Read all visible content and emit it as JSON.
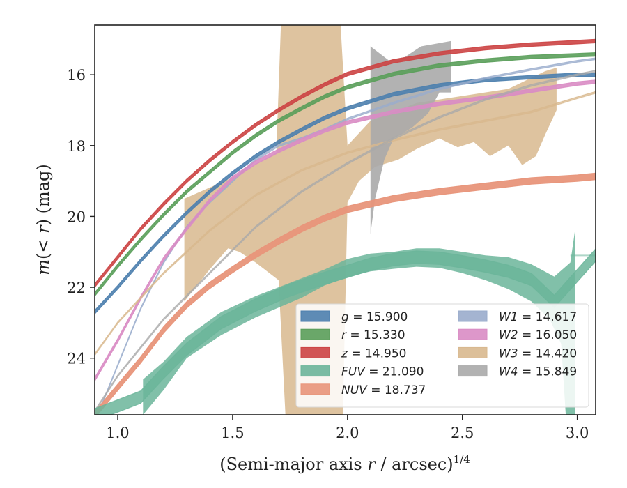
{
  "chart_data": {
    "type": "area",
    "xlabel_main": "(Semi-major axis ",
    "xlabel_var": "r",
    "xlabel_unit": " / arcsec)",
    "xlabel_sup": "1/4",
    "ylabel_m": "m",
    "ylabel_paren": "(< ",
    "ylabel_r": "r",
    "ylabel_close": ") (mag)",
    "xlim": [
      0.9,
      3.08
    ],
    "ylim": [
      25.6,
      14.6
    ],
    "xticks": [
      "1.0",
      "1.5",
      "2.0",
      "2.5",
      "3.0"
    ],
    "xtick_values": [
      1.0,
      1.5,
      2.0,
      2.5,
      3.0
    ],
    "yticks": [
      "16",
      "18",
      "20",
      "22",
      "24"
    ],
    "ytick_values": [
      16,
      18,
      20,
      22,
      24
    ],
    "legend_position": "lower-right",
    "series": [
      {
        "name": "g",
        "label": "g = 15.900",
        "color": "#4c7fae",
        "opacity": 0.9,
        "width": 0.1,
        "x": [
          0.9,
          1.0,
          1.1,
          1.2,
          1.3,
          1.4,
          1.5,
          1.6,
          1.7,
          1.8,
          1.9,
          2.0,
          2.2,
          2.4,
          2.6,
          2.8,
          3.0,
          3.08
        ],
        "y": [
          22.7,
          22.0,
          21.25,
          20.55,
          19.9,
          19.3,
          18.78,
          18.3,
          17.9,
          17.55,
          17.22,
          16.95,
          16.55,
          16.3,
          16.15,
          16.07,
          16.0,
          16.0
        ]
      },
      {
        "name": "r",
        "label": "r = 15.330",
        "color": "#5a9e5a",
        "opacity": 0.9,
        "width": 0.1,
        "x": [
          0.9,
          1.0,
          1.1,
          1.2,
          1.3,
          1.4,
          1.5,
          1.6,
          1.7,
          1.8,
          1.9,
          2.0,
          2.2,
          2.4,
          2.6,
          2.8,
          3.0,
          3.08
        ],
        "y": [
          22.2,
          21.4,
          20.65,
          19.95,
          19.3,
          18.75,
          18.2,
          17.72,
          17.3,
          16.95,
          16.62,
          16.35,
          15.98,
          15.74,
          15.6,
          15.5,
          15.45,
          15.43
        ]
      },
      {
        "name": "z",
        "label": "z = 14.950",
        "color": "#cc4444",
        "opacity": 0.9,
        "width": 0.1,
        "x": [
          0.9,
          1.0,
          1.1,
          1.2,
          1.3,
          1.4,
          1.5,
          1.6,
          1.7,
          1.8,
          1.9,
          2.0,
          2.2,
          2.4,
          2.6,
          2.8,
          3.0,
          3.08
        ],
        "y": [
          21.95,
          21.15,
          20.35,
          19.65,
          19.0,
          18.42,
          17.9,
          17.42,
          17.0,
          16.62,
          16.28,
          15.98,
          15.62,
          15.4,
          15.25,
          15.15,
          15.08,
          15.05
        ]
      },
      {
        "name": "W1",
        "label": "W1 = 14.617",
        "color": "#9aaccc",
        "opacity": 0.75,
        "width": 0.05,
        "x": [
          0.9,
          1.0,
          1.1,
          1.2,
          1.3,
          1.4,
          1.5,
          1.6,
          1.7,
          1.8,
          1.9,
          2.0,
          2.2,
          2.4,
          2.6,
          2.8,
          3.0,
          3.08
        ],
        "y": [
          25.8,
          24.2,
          22.6,
          21.3,
          20.3,
          19.6,
          19.0,
          18.4,
          18.0,
          17.8,
          17.55,
          17.25,
          16.8,
          16.4,
          16.1,
          15.85,
          15.62,
          15.55
        ]
      },
      {
        "name": "W2",
        "label": "W2 = 16.050",
        "color": "#d98cc4",
        "opacity": 0.9,
        "width": 0.1,
        "x": [
          0.9,
          1.0,
          1.1,
          1.2,
          1.3,
          1.4,
          1.5,
          1.6,
          1.7,
          1.8,
          1.9,
          2.0,
          2.2,
          2.4,
          2.6,
          2.8,
          3.0,
          3.08
        ],
        "y": [
          24.6,
          23.5,
          22.3,
          21.2,
          20.35,
          19.55,
          18.92,
          18.48,
          18.15,
          17.85,
          17.58,
          17.35,
          17.05,
          16.82,
          16.65,
          16.45,
          16.25,
          16.2
        ]
      },
      {
        "name": "W3",
        "label": "W3 = 14.420",
        "color": "#d8b88e",
        "opacity": 0.75,
        "width": 0.05,
        "x": [
          0.9,
          1.0,
          1.2,
          1.4,
          1.6,
          1.8,
          2.0,
          2.2,
          2.4,
          2.6,
          2.8,
          3.0,
          3.08
        ],
        "y": [
          23.9,
          23.0,
          21.6,
          20.4,
          19.4,
          18.7,
          18.2,
          17.85,
          17.55,
          17.3,
          17.05,
          16.65,
          16.5
        ]
      },
      {
        "name": "W4",
        "label": "W4 = 15.849",
        "color": "#aaaaaa",
        "opacity": 0.7,
        "width": 0.05,
        "x": [
          0.9,
          1.0,
          1.2,
          1.4,
          1.6,
          1.8,
          2.0,
          2.2,
          2.4,
          2.6,
          2.8,
          3.0,
          3.08
        ],
        "y": [
          25.5,
          24.5,
          22.9,
          21.6,
          20.3,
          19.3,
          18.5,
          17.8,
          17.2,
          16.7,
          16.3,
          16.0,
          15.9
        ]
      },
      {
        "name": "NUV",
        "label": "NUV = 18.737",
        "color": "#e8957a",
        "opacity": 0.95,
        "width": 0.18,
        "x": [
          0.9,
          1.1,
          1.2,
          1.3,
          1.4,
          1.5,
          1.6,
          1.7,
          1.8,
          1.9,
          2.0,
          2.2,
          2.4,
          2.6,
          2.8,
          3.0,
          3.08
        ],
        "y": [
          25.6,
          24.05,
          23.2,
          22.5,
          21.95,
          21.5,
          21.08,
          20.7,
          20.35,
          20.05,
          19.8,
          19.5,
          19.3,
          19.15,
          19.0,
          18.92,
          18.87
        ]
      },
      {
        "name": "FUV",
        "label": "FUV = 21.090",
        "color": "#6bb59a",
        "opacity": 0.85,
        "width": 0.35,
        "x": [
          0.9,
          1.1,
          1.2,
          1.3,
          1.45,
          1.6,
          1.75,
          1.9,
          2.0,
          2.1,
          2.2,
          2.3,
          2.4,
          2.5,
          2.6,
          2.7,
          2.8,
          2.9,
          3.08
        ],
        "y": [
          25.6,
          25.1,
          24.4,
          23.75,
          23.0,
          22.5,
          22.08,
          21.75,
          21.55,
          21.35,
          21.22,
          21.15,
          21.18,
          21.28,
          21.4,
          21.55,
          21.78,
          22.4,
          21.09
        ]
      }
    ],
    "bands": [
      {
        "name": "W3-band",
        "color": "#d8b88e",
        "opacity": 0.85,
        "upper": [
          [
            1.29,
            19.5
          ],
          [
            1.5,
            18.9
          ],
          [
            1.69,
            18.2
          ],
          [
            1.71,
            14.6
          ],
          [
            1.97,
            14.6
          ],
          [
            2.0,
            18.0
          ],
          [
            2.1,
            17.3
          ],
          [
            2.3,
            16.8
          ],
          [
            2.5,
            16.6
          ],
          [
            2.7,
            16.4
          ],
          [
            2.86,
            15.9
          ],
          [
            2.91,
            15.8
          ]
        ],
        "lower": [
          [
            2.91,
            17.0
          ],
          [
            2.86,
            17.7
          ],
          [
            2.82,
            18.3
          ],
          [
            2.76,
            18.55
          ],
          [
            2.7,
            18.0
          ],
          [
            2.62,
            18.3
          ],
          [
            2.55,
            17.9
          ],
          [
            2.48,
            18.05
          ],
          [
            2.4,
            17.8
          ],
          [
            2.3,
            18.1
          ],
          [
            2.22,
            18.4
          ],
          [
            2.12,
            18.6
          ],
          [
            2.05,
            19.0
          ],
          [
            2.0,
            19.6
          ],
          [
            1.98,
            25.6
          ],
          [
            1.73,
            25.6
          ],
          [
            1.7,
            21.8
          ],
          [
            1.6,
            21.3
          ],
          [
            1.53,
            21.0
          ],
          [
            1.48,
            20.9
          ],
          [
            1.4,
            21.5
          ],
          [
            1.29,
            22.4
          ]
        ]
      },
      {
        "name": "W4-band",
        "color": "#aaaaaa",
        "opacity": 0.9,
        "upper": [
          [
            2.1,
            15.2
          ],
          [
            2.18,
            15.6
          ],
          [
            2.25,
            15.5
          ],
          [
            2.32,
            15.2
          ],
          [
            2.45,
            15.05
          ]
        ],
        "lower": [
          [
            2.45,
            16.5
          ],
          [
            2.4,
            16.5
          ],
          [
            2.35,
            17.1
          ],
          [
            2.28,
            17.5
          ],
          [
            2.2,
            17.8
          ],
          [
            2.16,
            18.4
          ],
          [
            2.12,
            19.5
          ],
          [
            2.1,
            20.5
          ]
        ]
      },
      {
        "name": "FUV-band",
        "color": "#6bb59a",
        "opacity": 0.85,
        "upper": [
          [
            1.11,
            24.6
          ],
          [
            1.2,
            24.1
          ],
          [
            1.3,
            23.4
          ],
          [
            1.45,
            22.7
          ],
          [
            1.6,
            22.25
          ],
          [
            1.8,
            21.75
          ],
          [
            1.9,
            21.5
          ],
          [
            2.0,
            21.2
          ],
          [
            2.1,
            21.05
          ],
          [
            2.2,
            21.0
          ],
          [
            2.3,
            20.9
          ],
          [
            2.4,
            20.9
          ],
          [
            2.5,
            21.0
          ],
          [
            2.6,
            21.1
          ],
          [
            2.7,
            21.15
          ],
          [
            2.8,
            21.35
          ],
          [
            2.9,
            21.7
          ],
          [
            2.97,
            21.3
          ],
          [
            2.99,
            20.4
          ]
        ],
        "lower": [
          [
            2.99,
            25.6
          ],
          [
            2.95,
            25.6
          ],
          [
            2.93,
            23.6
          ],
          [
            2.88,
            22.9
          ],
          [
            2.8,
            22.4
          ],
          [
            2.7,
            22.05
          ],
          [
            2.6,
            21.8
          ],
          [
            2.5,
            21.6
          ],
          [
            2.4,
            21.45
          ],
          [
            2.3,
            21.42
          ],
          [
            2.2,
            21.48
          ],
          [
            2.1,
            21.55
          ],
          [
            2.0,
            21.72
          ],
          [
            1.9,
            21.95
          ],
          [
            1.8,
            22.3
          ],
          [
            1.6,
            22.85
          ],
          [
            1.45,
            23.35
          ],
          [
            1.3,
            24.0
          ],
          [
            1.2,
            24.9
          ],
          [
            1.11,
            25.6
          ]
        ]
      },
      {
        "name": "FUV-line",
        "color": "#6bb59a",
        "opacity": 0.55,
        "line": true,
        "points": [
          [
            2.97,
            21.1
          ],
          [
            3.08,
            21.1
          ]
        ]
      }
    ],
    "legend": {
      "col1": [
        {
          "label": "g = 15.900",
          "var": "g",
          "val": " = 15.900",
          "color": "#4c7fae"
        },
        {
          "label": "r = 15.330",
          "var": "r",
          "val": " = 15.330",
          "color": "#5a9e5a"
        },
        {
          "label": "z = 14.950",
          "var": "z",
          "val": " = 14.950",
          "color": "#cc4444"
        },
        {
          "label": "FUV = 21.090",
          "var": "FUV",
          "val": " = 21.090",
          "color": "#6bb59a"
        },
        {
          "label": "NUV = 18.737",
          "var": "NUV",
          "val": " = 18.737",
          "color": "#e8957a"
        }
      ],
      "col2": [
        {
          "label": "W1 = 14.617",
          "var": "W1",
          "val": " = 14.617",
          "color": "#9aaccc"
        },
        {
          "label": "W2 = 16.050",
          "var": "W2",
          "val": " = 16.050",
          "color": "#d98cc4"
        },
        {
          "label": "W3 = 14.420",
          "var": "W3",
          "val": " = 14.420",
          "color": "#d8b88e"
        },
        {
          "label": "W4 = 15.849",
          "var": "W4",
          "val": " = 15.849",
          "color": "#aaaaaa"
        }
      ]
    }
  }
}
